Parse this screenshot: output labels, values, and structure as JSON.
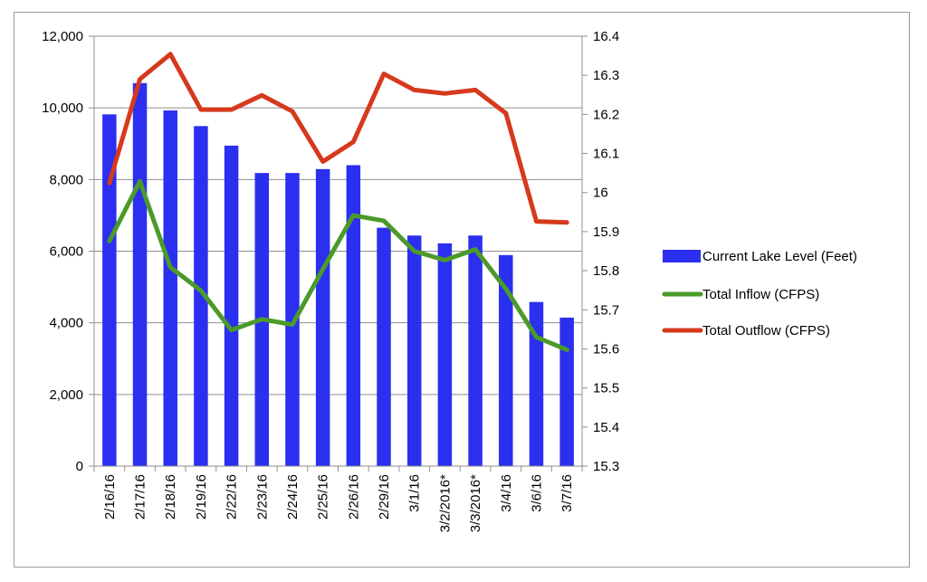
{
  "chart_data": {
    "type": "bar",
    "title": "",
    "xlabel": "",
    "ylabel": "",
    "y2label": "",
    "categories": [
      "2/16/16",
      "2/17/16",
      "2/18/16",
      "2/19/16",
      "2/22/16",
      "2/23/16",
      "2/24/16",
      "2/25/16",
      "2/26/16",
      "2/29/16",
      "3/1/16",
      "3/2/2016*",
      "3/3/2016*",
      "3/4/16",
      "3/6/16",
      "3/7/16"
    ],
    "ylim": [
      0,
      12000
    ],
    "y_ticks": [
      "0",
      "2,000",
      "4,000",
      "6,000",
      "8,000",
      "10,000",
      "12,000"
    ],
    "y2lim": [
      15.3,
      16.4
    ],
    "y2_ticks": [
      "15.3",
      "15.4",
      "15.5",
      "15.6",
      "15.7",
      "15.8",
      "15.9",
      "16",
      "16.1",
      "16.2",
      "16.3",
      "16.4"
    ],
    "grid": true,
    "legend_position": "right",
    "series": [
      {
        "name": "Current Lake Level (Feet)",
        "kind": "bar",
        "axis": "right",
        "color": "#2a2ff0",
        "values": [
          16.2,
          16.28,
          16.21,
          16.17,
          16.12,
          16.05,
          16.05,
          16.06,
          16.07,
          15.91,
          15.89,
          15.87,
          15.89,
          15.84,
          15.72,
          15.68
        ]
      },
      {
        "name": "Total Inflow (CFPS)",
        "kind": "line",
        "axis": "left",
        "color": "#4b9a2a",
        "values": [
          6280,
          7950,
          5550,
          4900,
          3800,
          4100,
          3950,
          5500,
          7000,
          6850,
          6000,
          5750,
          6050,
          4950,
          3600,
          3250
        ]
      },
      {
        "name": "Total Outflow (CFPS)",
        "kind": "line",
        "axis": "left",
        "color": "#d6391c",
        "values": [
          7900,
          10800,
          11500,
          9950,
          9950,
          10350,
          9900,
          8500,
          9050,
          10950,
          10500,
          10400,
          10500,
          9850,
          6830,
          6800
        ]
      }
    ]
  }
}
